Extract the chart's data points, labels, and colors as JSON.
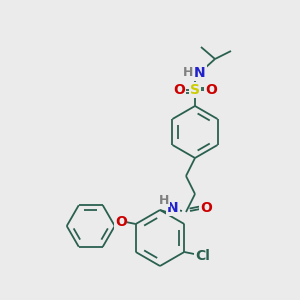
{
  "background_color": "#ebebeb",
  "bond_color": "#2a6050",
  "atom_colors": {
    "N": "#2020cc",
    "O": "#cc0000",
    "S": "#cccc00",
    "Cl": "#2a6050",
    "H": "#808080",
    "C": "#2a6050"
  },
  "figsize": [
    3.0,
    3.0
  ],
  "dpi": 100,
  "lw": 1.3
}
